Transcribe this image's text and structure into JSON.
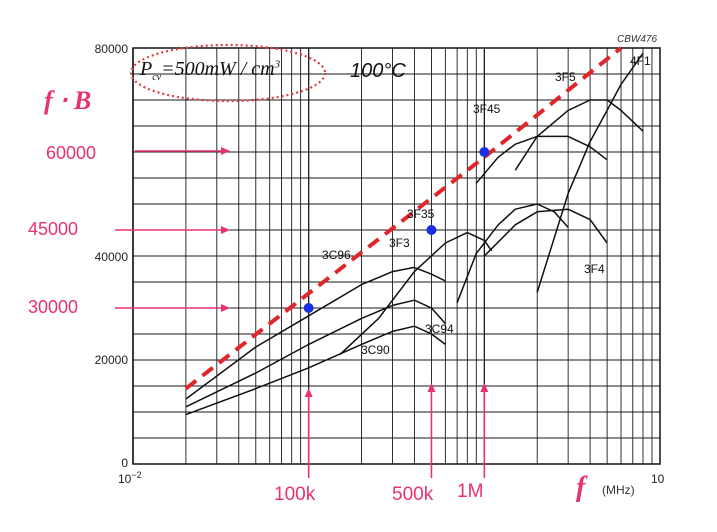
{
  "chart_data": {
    "type": "line",
    "title": "",
    "code": "CBW476",
    "condition": {
      "prefix": "P",
      "subscript": "cv",
      "equation": "=500mW / cm",
      "exponent": "3",
      "temperature": "100°C"
    },
    "y_axis_title": "f ⋅ B",
    "x_axis_title": "f",
    "x_axis_unit": "(MHz)",
    "x_scale": "log",
    "x_range_mhz": [
      0.01,
      10
    ],
    "y_range": [
      0,
      80000
    ],
    "x_tick_labels": {
      "min_base": "10",
      "min_exp": "−2",
      "max": "10"
    },
    "y_tick_labels": [
      "0",
      "20000",
      "40000",
      "80000"
    ],
    "series": [
      {
        "name": "3C96",
        "points": [
          [
            0.02,
            12500
          ],
          [
            0.05,
            22500
          ],
          [
            0.1,
            28500
          ],
          [
            0.2,
            34500
          ],
          [
            0.3,
            37000
          ],
          [
            0.4,
            37800
          ],
          [
            0.5,
            36500
          ],
          [
            0.6,
            35200
          ]
        ]
      },
      {
        "name": "3C94",
        "points": [
          [
            0.02,
            11000
          ],
          [
            0.05,
            17500
          ],
          [
            0.1,
            23000
          ],
          [
            0.2,
            28000
          ],
          [
            0.3,
            30500
          ],
          [
            0.4,
            31500
          ],
          [
            0.5,
            30000
          ],
          [
            0.6,
            27000
          ]
        ]
      },
      {
        "name": "3C90",
        "points": [
          [
            0.02,
            9500
          ],
          [
            0.05,
            14500
          ],
          [
            0.1,
            18500
          ],
          [
            0.2,
            23000
          ],
          [
            0.3,
            25500
          ],
          [
            0.4,
            26500
          ],
          [
            0.5,
            25000
          ],
          [
            0.6,
            23000
          ]
        ]
      },
      {
        "name": "3F3",
        "points": [
          [
            0.15,
            21000
          ],
          [
            0.25,
            28000
          ],
          [
            0.4,
            37000
          ],
          [
            0.6,
            42500
          ],
          [
            0.8,
            44500
          ],
          [
            1.0,
            43000
          ],
          [
            1.1,
            41000
          ]
        ]
      },
      {
        "name": "3F35",
        "points": [
          [
            0.7,
            31000
          ],
          [
            0.9,
            40500
          ],
          [
            1.2,
            46000
          ],
          [
            1.5,
            49000
          ],
          [
            2.0,
            50000
          ],
          [
            2.5,
            48500
          ],
          [
            3.0,
            45500
          ]
        ]
      },
      {
        "name": "3F4",
        "points": [
          [
            1.0,
            40000
          ],
          [
            1.5,
            46000
          ],
          [
            2.0,
            48500
          ],
          [
            3.0,
            49000
          ],
          [
            4.0,
            47000
          ],
          [
            5.0,
            42500
          ]
        ]
      },
      {
        "name": "3F45",
        "points": [
          [
            0.9,
            54000
          ],
          [
            1.2,
            59000
          ],
          [
            1.5,
            61500
          ],
          [
            2.0,
            63000
          ],
          [
            3.0,
            63000
          ],
          [
            4.0,
            61000
          ],
          [
            5.0,
            58500
          ]
        ]
      },
      {
        "name": "3F5",
        "points": [
          [
            1.5,
            56500
          ],
          [
            2.0,
            63000
          ],
          [
            3.0,
            68000
          ],
          [
            4.0,
            70000
          ],
          [
            5.0,
            70000
          ],
          [
            6.0,
            68000
          ],
          [
            8.0,
            64000
          ]
        ]
      },
      {
        "name": "4F1",
        "points": [
          [
            2.0,
            33000
          ],
          [
            3.0,
            52000
          ],
          [
            4.0,
            62000
          ],
          [
            5.0,
            68000
          ],
          [
            6.0,
            73000
          ],
          [
            8.0,
            79000
          ]
        ]
      }
    ],
    "envelope": {
      "points": [
        [
          0.02,
          14500
        ],
        [
          1.0,
          59000
        ],
        [
          6.0,
          80000
        ]
      ],
      "color": "#e0262a",
      "style": "dashed"
    },
    "markers": [
      {
        "x": 0.1,
        "y": 30000,
        "color": "#1a2ee6"
      },
      {
        "x": 0.5,
        "y": 45000,
        "color": "#1a2ee6"
      },
      {
        "x": 1.0,
        "y": 60000,
        "color": "#1a2ee6"
      }
    ],
    "annotations": {
      "y_levels": [
        {
          "label": "60000",
          "value": 60000
        },
        {
          "label": "45000",
          "value": 45000
        },
        {
          "label": "30000",
          "value": 30000
        }
      ],
      "x_freqs": [
        {
          "label": "100k",
          "value": 0.1
        },
        {
          "label": "500k",
          "value": 0.5
        },
        {
          "label": "1M",
          "value": 1.0
        }
      ],
      "color": "#e8336a"
    },
    "grid": true
  }
}
